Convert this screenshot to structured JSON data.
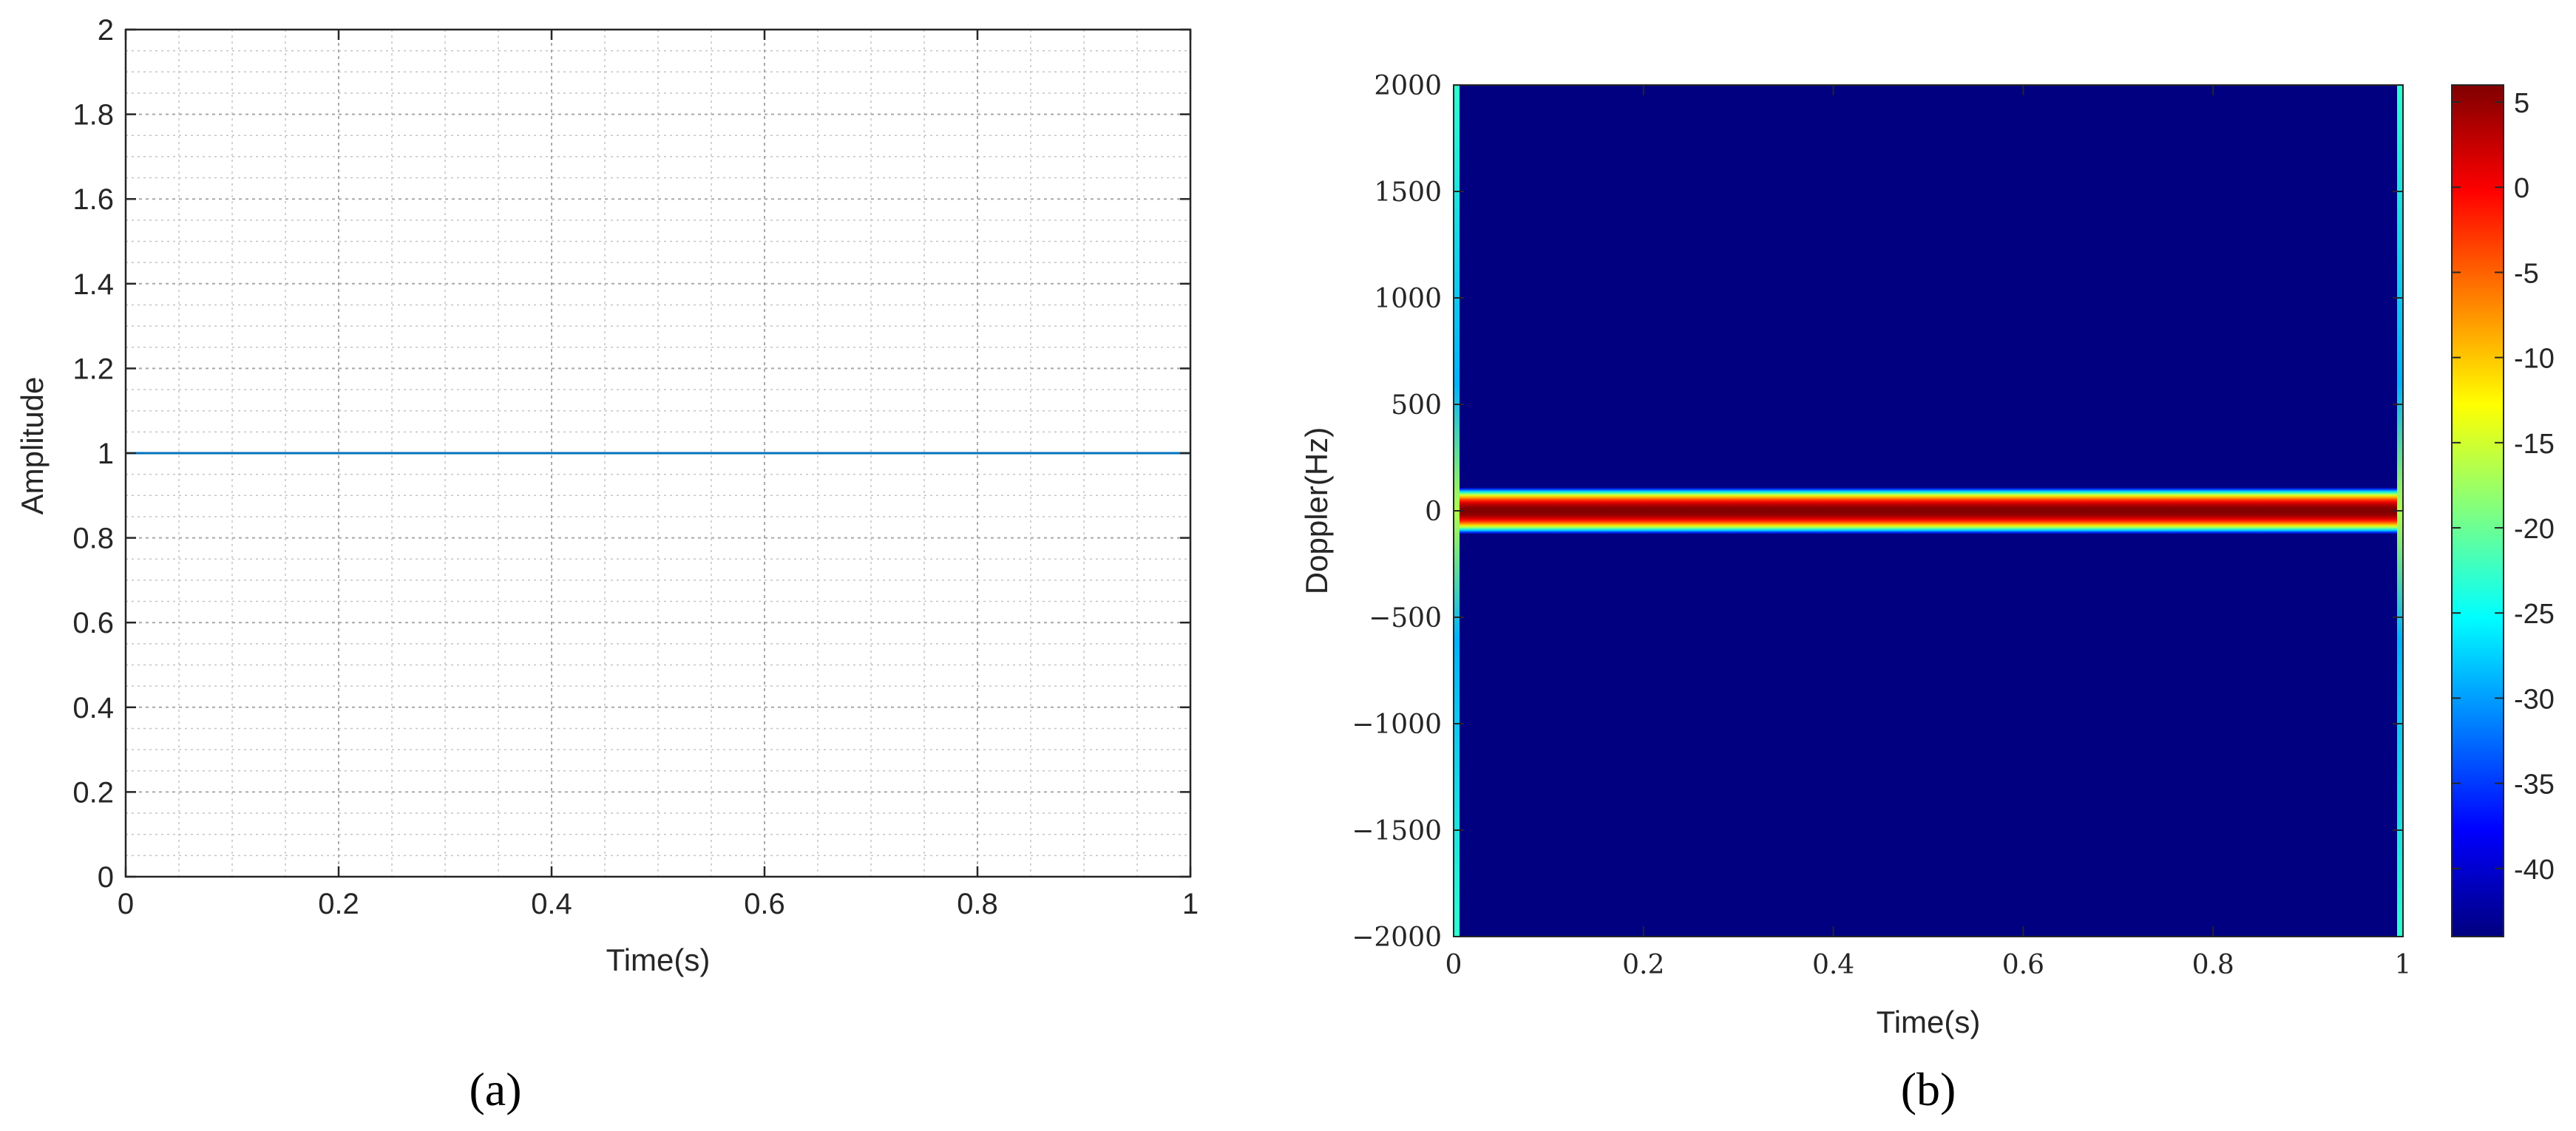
{
  "chart_data": [
    {
      "type": "line",
      "panel_label": "(a)",
      "xlabel": "Time(s)",
      "ylabel": "Amplitude",
      "xlim": [
        0,
        1
      ],
      "ylim": [
        0,
        2
      ],
      "xticks": [
        0,
        0.2,
        0.4,
        0.6,
        0.8,
        1
      ],
      "xtick_labels": [
        "0",
        "0.2",
        "0.4",
        "0.6",
        "0.8",
        "1"
      ],
      "yticks": [
        0,
        0.2,
        0.4,
        0.6,
        0.8,
        1,
        1.2,
        1.4,
        1.6,
        1.8,
        2
      ],
      "ytick_labels": [
        "0",
        "0.2",
        "0.4",
        "0.6",
        "0.8",
        "1",
        "1.2",
        "1.4",
        "1.6",
        "1.8",
        "2"
      ],
      "grid": true,
      "minor_grid": true,
      "series": [
        {
          "x": [
            0,
            1
          ],
          "y": [
            1,
            1
          ],
          "color": "#0072bd"
        }
      ]
    },
    {
      "type": "heatmap",
      "panel_label": "(b)",
      "xlabel": "Time(s)",
      "ylabel": "Doppler(Hz)",
      "xlim": [
        0,
        1
      ],
      "ylim": [
        -2000,
        2000
      ],
      "xticks": [
        0,
        0.2,
        0.4,
        0.6,
        0.8,
        1
      ],
      "xtick_labels": [
        "0",
        "0.2",
        "0.4",
        "0.6",
        "0.8",
        "1"
      ],
      "yticks": [
        -2000,
        -1500,
        -1000,
        -500,
        0,
        500,
        1000,
        1500,
        2000
      ],
      "ytick_labels": [
        "−2000",
        "−1500",
        "−1000",
        "−500",
        "0",
        "500",
        "1000",
        "1500",
        "2000"
      ],
      "colormap": "jet",
      "colorbar": {
        "range": [
          -44,
          6
        ],
        "ticks": [
          5,
          0,
          -5,
          -10,
          -15,
          -20,
          -25,
          -30,
          -35,
          -40
        ],
        "tick_labels": [
          "5",
          "0",
          "-5",
          "-10",
          "-15",
          "-20",
          "-25",
          "-30",
          "-35",
          "-40"
        ]
      },
      "band": {
        "center_hz": 0,
        "half_width_hz": 100,
        "peak_db": 6,
        "floor_db": -44
      },
      "edge_spread": {
        "x": [
          0,
          1
        ],
        "min_hz": -2000,
        "max_hz": 2000
      }
    }
  ]
}
